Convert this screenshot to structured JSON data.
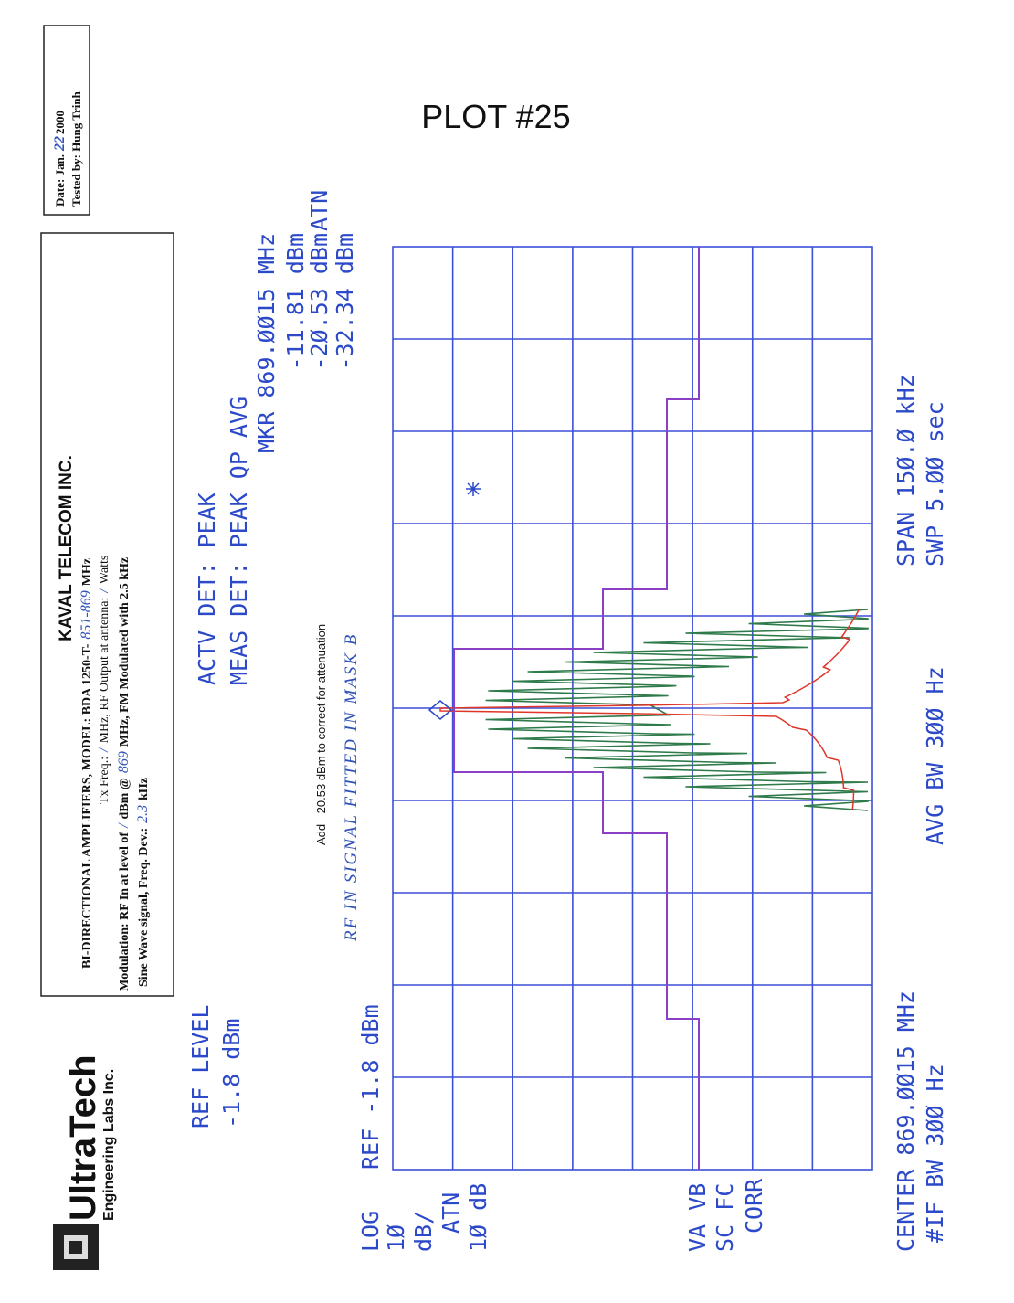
{
  "logo": {
    "name": "UltraTech",
    "sub": "Engineering Labs Inc."
  },
  "header": {
    "company": "KAVAL TELECOM INC.",
    "lines": [
      [
        "BI-DIRECTIONAL AMPLIFIERS, MODEL: BDA 1250-T-",
        "851-869",
        "MHz"
      ],
      [
        "Tx Freq.:",
        "/",
        "MHz, RF Output at antenna:",
        "/",
        "Watts"
      ],
      [
        "Modulation: RF In at level of",
        "/",
        "dBm @",
        "869",
        "MHz, FM Modulated with 2.5 kHz"
      ],
      [
        "Sine Wave signal, Freq. Dev.:",
        "2.3",
        "kHz"
      ]
    ]
  },
  "test_box": {
    "date": [
      "Date: Jan.",
      "22",
      "2000"
    ],
    "tested_by": "Tested by: Hung Trinh"
  },
  "plot_title": "PLOT #25",
  "analyzer": {
    "ref_level_label": "REF LEVEL",
    "ref_level_value": "-1.8 dBm",
    "actv_det": "ACTV DET: PEAK",
    "meas_det": "MEAS DET: PEAK QP AVG",
    "marker_freq": "MKR 869.ØØ15 MHz",
    "readings": [
      "-11.81 dBm",
      "-2Ø.53 dBm",
      "-32.34 dBm"
    ],
    "atn": "ATN",
    "note": "Add - 20.53 dBm to correct for attenuation",
    "handwritten_note": "RF IN SIGNAL FITTED IN MASK B",
    "ref": "REF -1.8 dBm",
    "side_labels": [
      "LOG",
      "1Ø",
      "dB/",
      "ATN",
      "1Ø dB",
      "VA VB",
      "SC FC",
      "CORR"
    ],
    "center": "CENTER 869.ØØ15 MHz",
    "if_bw": "#IF BW 3ØØ Hz",
    "avg_bw": "AVG BW 3ØØ Hz",
    "span": "SPAN 15Ø.Ø kHz",
    "sweep": "SWP 5.ØØ sec"
  }
}
